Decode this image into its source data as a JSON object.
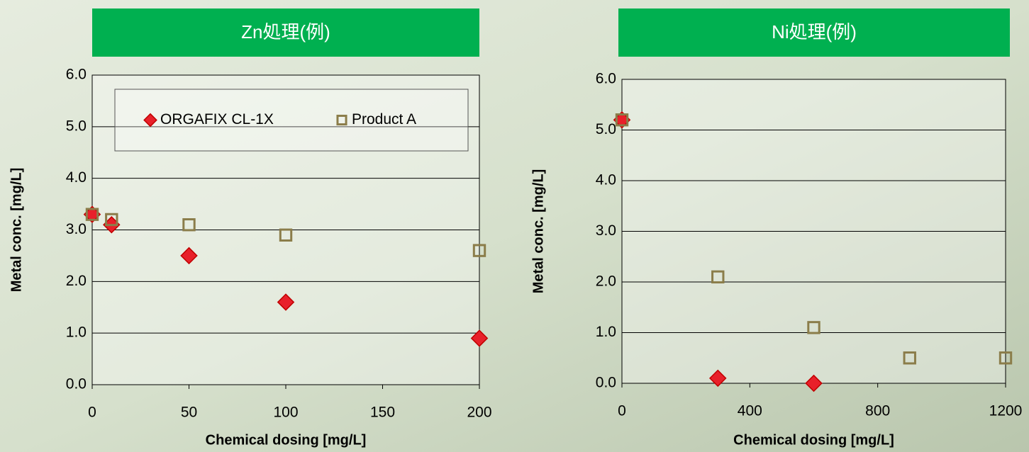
{
  "chart_data": [
    {
      "type": "scatter",
      "title": "Zn処理(例)",
      "x_label": "Chemical dosing [mg/L]",
      "y_label": "Metal conc. [mg/L]",
      "xlim": [
        0,
        200
      ],
      "xticks": [
        0,
        50,
        100,
        150,
        200
      ],
      "ylim": [
        0,
        6
      ],
      "yticks": [
        {
          "value": 0,
          "label": "0.0"
        },
        {
          "value": 1,
          "label": "1.0"
        },
        {
          "value": 2,
          "label": "2.0"
        },
        {
          "value": 3,
          "label": "3.0"
        },
        {
          "value": 4,
          "label": "4.0"
        },
        {
          "value": 5,
          "label": "5.0"
        },
        {
          "value": 6,
          "label": "6.0"
        }
      ],
      "grid": true,
      "legend": true,
      "series": [
        {
          "name": "ORGAFIX CL-1X",
          "color": "#e8202a",
          "marker": "diamond",
          "x": [
            0,
            10,
            50,
            100,
            200
          ],
          "values": [
            3.3,
            3.1,
            2.5,
            1.6,
            0.9
          ]
        },
        {
          "name": "Product A",
          "color": "#8b7d4a",
          "marker": "square",
          "x": [
            0,
            10,
            50,
            100,
            200
          ],
          "values": [
            3.3,
            3.2,
            3.1,
            2.9,
            2.6
          ]
        }
      ]
    },
    {
      "type": "scatter",
      "title": "Ni処理(例)",
      "x_label": "Chemical dosing [mg/L]",
      "y_label": "Metal conc. [mg/L]",
      "xlim": [
        0,
        1200
      ],
      "xticks": [
        0,
        400,
        800,
        1200
      ],
      "ylim": [
        0,
        6
      ],
      "yticks": [
        {
          "value": 0,
          "label": "0.0"
        },
        {
          "value": 1,
          "label": "1.0"
        },
        {
          "value": 2,
          "label": "2.0"
        },
        {
          "value": 3,
          "label": "3.0"
        },
        {
          "value": 4,
          "label": "4.0"
        },
        {
          "value": 5,
          "label": "5.0"
        },
        {
          "value": 6,
          "label": "6.0"
        }
      ],
      "grid": true,
      "legend": false,
      "series": [
        {
          "name": "ORGAFIX CL-1X",
          "color": "#e8202a",
          "marker": "diamond",
          "x": [
            0,
            300,
            600
          ],
          "values": [
            5.2,
            0.1,
            0.0
          ]
        },
        {
          "name": "Product A",
          "color": "#8b7d4a",
          "marker": "square",
          "x": [
            0,
            300,
            600,
            900,
            1200
          ],
          "values": [
            5.2,
            2.1,
            1.1,
            0.5,
            0.5
          ]
        }
      ]
    }
  ]
}
